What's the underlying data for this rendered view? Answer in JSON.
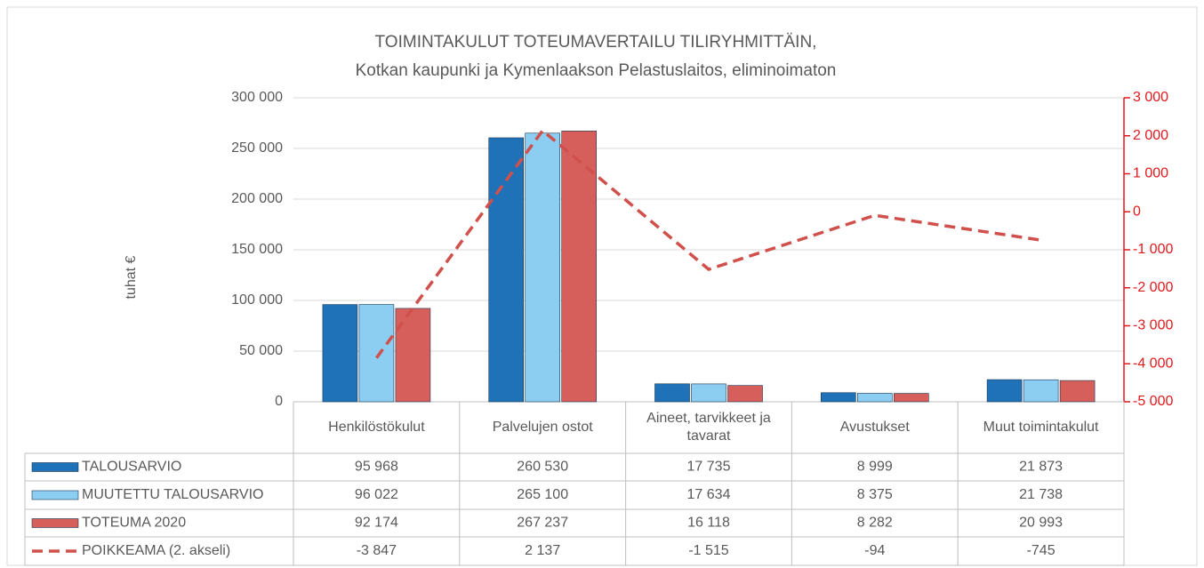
{
  "chart_data": {
    "type": "bar",
    "title": "TOIMINTAKULUT TOTEUMAVERTAILU TILIRYHMITTÄIN,",
    "subtitle": "Kotkan kaupunki ja Kymenlaakson Pelastuslaitos, eliminoimaton",
    "y_label": "tuhat €",
    "categories": [
      "Henkilöstökulut",
      "Palvelujen ostot",
      "Aineet, tarvikkeet ja tavarat",
      "Avustukset",
      "Muut toimintakulut"
    ],
    "series": [
      {
        "name": "TALOUSARVIO",
        "color": "#1f72b8",
        "values": [
          95968,
          260530,
          17735,
          8999,
          21873
        ],
        "value_labels": [
          "95 968",
          "260 530",
          "17 735",
          "8 999",
          "21 873"
        ]
      },
      {
        "name": "MUUTETTU TALOUSARVIO",
        "color": "#8ccdf2",
        "values": [
          96022,
          265100,
          17634,
          8375,
          21738
        ],
        "value_labels": [
          "96 022",
          "265 100",
          "17 634",
          "8 375",
          "21 738"
        ]
      },
      {
        "name": "TOTEUMA 2020",
        "color": "#d65f5c",
        "values": [
          92174,
          267237,
          16118,
          8282,
          20993
        ],
        "value_labels": [
          "92 174",
          "267 237",
          "16 118",
          "8 282",
          "20 993"
        ]
      },
      {
        "name": "POIKKEAMA (2. akseli)",
        "color": "#d0504c",
        "type": "line",
        "axis": "y2",
        "values": [
          -3847,
          2137,
          -1515,
          -94,
          -745
        ],
        "value_labels": [
          "-3 847",
          "2 137",
          "-1 515",
          "-94",
          "-745"
        ]
      }
    ],
    "ylim": [
      0,
      300000
    ],
    "yticks": [
      0,
      {
        "value": 50000,
        "label": "50 000"
      },
      {
        "value": 100000,
        "label": "100 000"
      },
      {
        "value": 150000,
        "label": "150 000"
      },
      {
        "value": 200000,
        "label": "200 000"
      },
      {
        "value": 250000,
        "label": "250 000"
      },
      {
        "value": 300000,
        "label": "300 000"
      }
    ],
    "y2lim": [
      -5000,
      3000
    ],
    "y2ticks": [
      {
        "value": -5000,
        "label": "-5 000"
      },
      {
        "value": -4000,
        "label": "-4 000"
      },
      {
        "value": -3000,
        "label": "-3 000"
      },
      {
        "value": -2000,
        "label": "-2 000"
      },
      {
        "value": -1000,
        "label": "-1 000"
      },
      0,
      {
        "value": 1000,
        "label": "1 000"
      },
      {
        "value": 2000,
        "label": "2 000"
      },
      {
        "value": 3000,
        "label": "3 000"
      }
    ],
    "y2_color": "#e0191c",
    "grid": true
  }
}
